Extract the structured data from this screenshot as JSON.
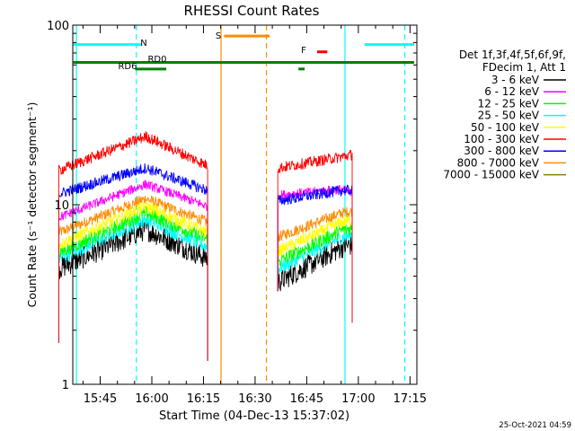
{
  "chart_data": {
    "type": "line",
    "title": "RHESSI Count Rates",
    "xlabel": "Start Time (04-Dec-13 15:37:02)",
    "ylabel": "Count Rate (s⁻¹ detector segment⁻¹)",
    "y_scale": "log",
    "ylim": [
      1,
      100
    ],
    "xlim": [
      "15:37:02",
      "17:17:00"
    ],
    "x_ticks": [
      "15:45",
      "16:00",
      "16:15",
      "16:30",
      "16:45",
      "17:00",
      "17:15"
    ],
    "y_ticks": [
      "1",
      "10",
      "100"
    ],
    "timestamp": "25-Oct-2021 04:59",
    "legend": {
      "placement": "right",
      "header": [
        "Det 1f,3f,4f,5f,6f,9f,",
        "FDecim 1, Att 1"
      ]
    },
    "series": [
      {
        "name": "3 - 6 keV",
        "color": "#000000",
        "segment1": [
          [
            15.55,
            4.4
          ],
          [
            15.97,
            7.3
          ],
          [
            16.27,
            5.0
          ]
        ],
        "segment2": [
          [
            16.61,
            3.7
          ],
          [
            16.92,
            5.8
          ],
          [
            16.97,
            6.0
          ]
        ]
      },
      {
        "name": "6 - 12 keV",
        "color": "#ff00ff",
        "segment1": [
          [
            15.55,
            8.5
          ],
          [
            15.97,
            13.0
          ],
          [
            16.27,
            9.8
          ]
        ],
        "segment2": [
          [
            16.61,
            11.3
          ],
          [
            16.92,
            12.2
          ],
          [
            16.97,
            11.5
          ]
        ]
      },
      {
        "name": "12 - 25 keV",
        "color": "#00ff00",
        "segment1": [
          [
            15.55,
            5.4
          ],
          [
            15.97,
            9.0
          ],
          [
            16.27,
            6.4
          ]
        ],
        "segment2": [
          [
            16.61,
            4.8
          ],
          [
            16.92,
            7.2
          ],
          [
            16.97,
            7.4
          ]
        ]
      },
      {
        "name": "25 - 50 keV",
        "color": "#00ffff",
        "segment1": [
          [
            15.55,
            5.0
          ],
          [
            15.97,
            8.3
          ],
          [
            16.27,
            5.8
          ]
        ],
        "segment2": [
          [
            16.61,
            4.4
          ],
          [
            16.92,
            6.6
          ],
          [
            16.97,
            6.8
          ]
        ]
      },
      {
        "name": "50 - 100 keV",
        "color": "#ffff00",
        "segment1": [
          [
            15.55,
            6.0
          ],
          [
            15.97,
            9.8
          ],
          [
            16.27,
            7.0
          ]
        ],
        "segment2": [
          [
            16.61,
            5.5
          ],
          [
            16.92,
            8.0
          ],
          [
            16.97,
            8.2
          ]
        ]
      },
      {
        "name": "100 - 300 keV",
        "color": "#ff0000",
        "segment1": [
          [
            15.55,
            15.5
          ],
          [
            15.97,
            24.0
          ],
          [
            16.27,
            16.5
          ]
        ],
        "segment2": [
          [
            16.61,
            16.0
          ],
          [
            16.92,
            18.5
          ],
          [
            16.97,
            19.0
          ]
        ]
      },
      {
        "name": "300 - 800 keV",
        "color": "#0000ff",
        "segment1": [
          [
            15.55,
            11.5
          ],
          [
            15.97,
            16.0
          ],
          [
            16.27,
            12.0
          ]
        ],
        "segment2": [
          [
            16.61,
            10.5
          ],
          [
            16.92,
            12.0
          ],
          [
            16.97,
            12.0
          ]
        ]
      },
      {
        "name": "800 - 7000 keV",
        "color": "#ff8c00",
        "segment1": [
          [
            15.55,
            7.0
          ],
          [
            15.97,
            10.8
          ],
          [
            16.27,
            8.0
          ]
        ],
        "segment2": [
          [
            16.61,
            6.6
          ],
          [
            16.92,
            9.0
          ],
          [
            16.97,
            9.2
          ]
        ]
      },
      {
        "name": "7000 - 15000 keV",
        "color": "#808000",
        "segment1": [],
        "segment2": []
      }
    ],
    "annotations": {
      "N": {
        "label": "N",
        "color": "#00ffff",
        "bars": [
          [
            15.62,
            15.95
          ],
          [
            17.03,
            17.27
          ]
        ],
        "y": 78
      },
      "S": {
        "label": "S",
        "color": "#ff8c00",
        "bars": [
          [
            16.35,
            16.57
          ]
        ],
        "y": 87
      },
      "F": {
        "label": "F",
        "color": "#ff0000",
        "bars": [
          [
            16.8,
            16.85
          ]
        ],
        "y": 71
      },
      "RD0": {
        "label": "RD0",
        "color": "#008000",
        "bars": [
          [
            15.62,
            17.27
          ]
        ],
        "y": 62
      },
      "RD6": {
        "label": "RD6",
        "color": "#008000",
        "bars": [
          [
            15.92,
            16.07
          ],
          [
            16.71,
            16.74
          ]
        ],
        "y": 57
      },
      "vlines": [
        {
          "x": 15.635,
          "color": "#00ffff",
          "dashed": false
        },
        {
          "x": 15.925,
          "color": "#00ffff",
          "dashed": true
        },
        {
          "x": 16.335,
          "color": "#ff8c00",
          "dashed": false
        },
        {
          "x": 16.555,
          "color": "#ff8c00",
          "dashed": true
        },
        {
          "x": 16.935,
          "color": "#00ffff",
          "dashed": false
        },
        {
          "x": 17.225,
          "color": "#00ffff",
          "dashed": true
        }
      ]
    }
  }
}
